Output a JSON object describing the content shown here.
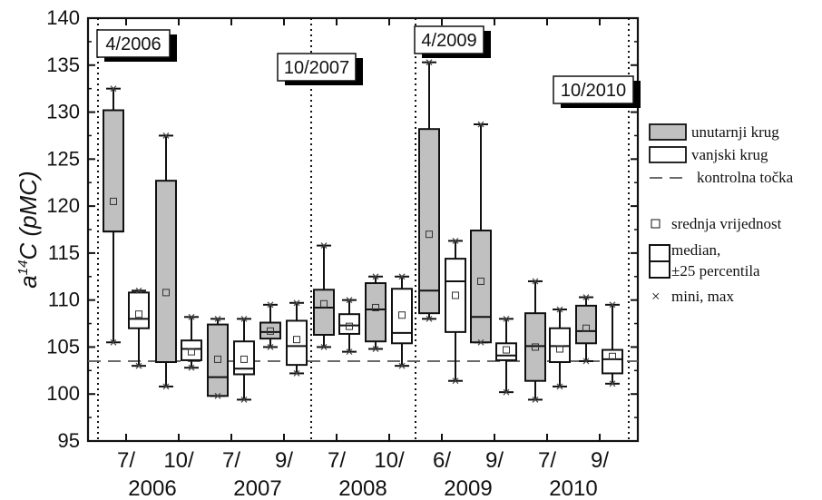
{
  "chart_data": {
    "type": "box",
    "ylabel_main": "a",
    "ylabel_sup": "14",
    "ylabel_rest": "C (pMC)",
    "ylim": [
      95,
      140
    ],
    "yticks": [
      "95",
      "100",
      "105",
      "110",
      "115",
      "120",
      "125",
      "130",
      "135",
      "140"
    ],
    "x_month_labels": [
      "7/",
      "10/",
      "7/",
      "9/",
      "7/",
      "10/",
      "6/",
      "9/",
      "7/",
      "9/"
    ],
    "x_year_labels": [
      "2006",
      "2007",
      "2008",
      "2009",
      "2010"
    ],
    "events": [
      "4/2006",
      "10/2007",
      "4/2009",
      "10/2010"
    ],
    "control_point": 103.5,
    "legend": {
      "inner": "unutarnji krug",
      "outer": "vanjski krug",
      "control": "kontrolna točka",
      "mean": "srednja vrijednost",
      "median_a": "median,",
      "median_b": "±25 percentila",
      "minmax": "mini, max"
    },
    "colors": {
      "inner_fill": "#c0c0c0",
      "outer_fill": "#ffffff",
      "stroke": "#111111",
      "control_line": "#555555"
    },
    "boxes": [
      {
        "label": "7/2006 inner",
        "type": "inner",
        "min": 105.5,
        "q1": 117.3,
        "median": 117.3,
        "q3": 130.2,
        "max": 132.5,
        "mean": 120.5
      },
      {
        "label": "7/2006 outer",
        "type": "outer",
        "min": 103.0,
        "q1": 107.0,
        "median": 108.0,
        "q3": 110.8,
        "max": 111.0,
        "mean": 108.5
      },
      {
        "label": "10/2006 inner",
        "type": "inner",
        "min": 100.8,
        "q1": 103.4,
        "median": 103.4,
        "q3": 122.7,
        "max": 127.5,
        "mean": 110.8
      },
      {
        "label": "10/2006 outer",
        "type": "outer",
        "min": 102.8,
        "q1": 103.6,
        "median": 104.8,
        "q3": 105.7,
        "max": 108.2,
        "mean": 104.5
      },
      {
        "label": "7/2007 inner",
        "type": "inner",
        "min": 99.8,
        "q1": 99.8,
        "median": 101.8,
        "q3": 107.4,
        "max": 108.0,
        "mean": 103.7
      },
      {
        "label": "7/2007 outer",
        "type": "outer",
        "min": 99.4,
        "q1": 102.1,
        "median": 102.7,
        "q3": 105.6,
        "max": 108.0,
        "mean": 103.7
      },
      {
        "label": "9/2007 inner",
        "type": "inner",
        "min": 105.0,
        "q1": 105.9,
        "median": 106.6,
        "q3": 107.6,
        "max": 109.5,
        "mean": 106.7
      },
      {
        "label": "9/2007 outer",
        "type": "outer",
        "min": 102.2,
        "q1": 103.1,
        "median": 105.1,
        "q3": 107.8,
        "max": 109.7,
        "mean": 105.8
      },
      {
        "label": "7/2008 inner",
        "type": "inner",
        "min": 105.0,
        "q1": 106.3,
        "median": 109.2,
        "q3": 111.1,
        "max": 115.8,
        "mean": 109.6
      },
      {
        "label": "7/2008 outer",
        "type": "outer",
        "min": 104.5,
        "q1": 106.4,
        "median": 107.3,
        "q3": 108.5,
        "max": 110.0,
        "mean": 107.2
      },
      {
        "label": "10/2008 inner",
        "type": "inner",
        "min": 104.8,
        "q1": 105.6,
        "median": 109.0,
        "q3": 111.8,
        "max": 112.5,
        "mean": 109.2
      },
      {
        "label": "10/2008 outer",
        "type": "outer",
        "min": 103.0,
        "q1": 105.4,
        "median": 106.5,
        "q3": 111.2,
        "max": 112.5,
        "mean": 108.4
      },
      {
        "label": "6/2009 inner",
        "type": "inner",
        "min": 108.0,
        "q1": 108.6,
        "median": 111.0,
        "q3": 128.2,
        "max": 135.3,
        "mean": 117.0
      },
      {
        "label": "6/2009 outer",
        "type": "outer",
        "min": 101.4,
        "q1": 106.6,
        "median": 112.0,
        "q3": 114.4,
        "max": 116.3,
        "mean": 110.5
      },
      {
        "label": "9/2009 inner",
        "type": "inner",
        "min": 105.5,
        "q1": 105.5,
        "median": 108.2,
        "q3": 117.4,
        "max": 128.7,
        "mean": 112.0
      },
      {
        "label": "9/2009 outer",
        "type": "outer",
        "min": 100.2,
        "q1": 103.6,
        "median": 104.1,
        "q3": 105.4,
        "max": 108.0,
        "mean": 104.7
      },
      {
        "label": "7/2010 inner",
        "type": "inner",
        "min": 99.4,
        "q1": 101.4,
        "median": 105.1,
        "q3": 108.6,
        "max": 112.0,
        "mean": 105.0
      },
      {
        "label": "7/2010 outer",
        "type": "outer",
        "min": 100.8,
        "q1": 103.4,
        "median": 105.1,
        "q3": 107.0,
        "max": 109.0,
        "mean": 104.8
      },
      {
        "label": "9/2010 inner",
        "type": "inner",
        "min": 103.5,
        "q1": 105.4,
        "median": 106.7,
        "q3": 109.4,
        "max": 110.3,
        "mean": 107.0
      },
      {
        "label": "9/2010 outer",
        "type": "outer",
        "min": 101.1,
        "q1": 102.2,
        "median": 103.7,
        "q3": 104.7,
        "max": 109.5,
        "mean": 104.0
      }
    ]
  }
}
